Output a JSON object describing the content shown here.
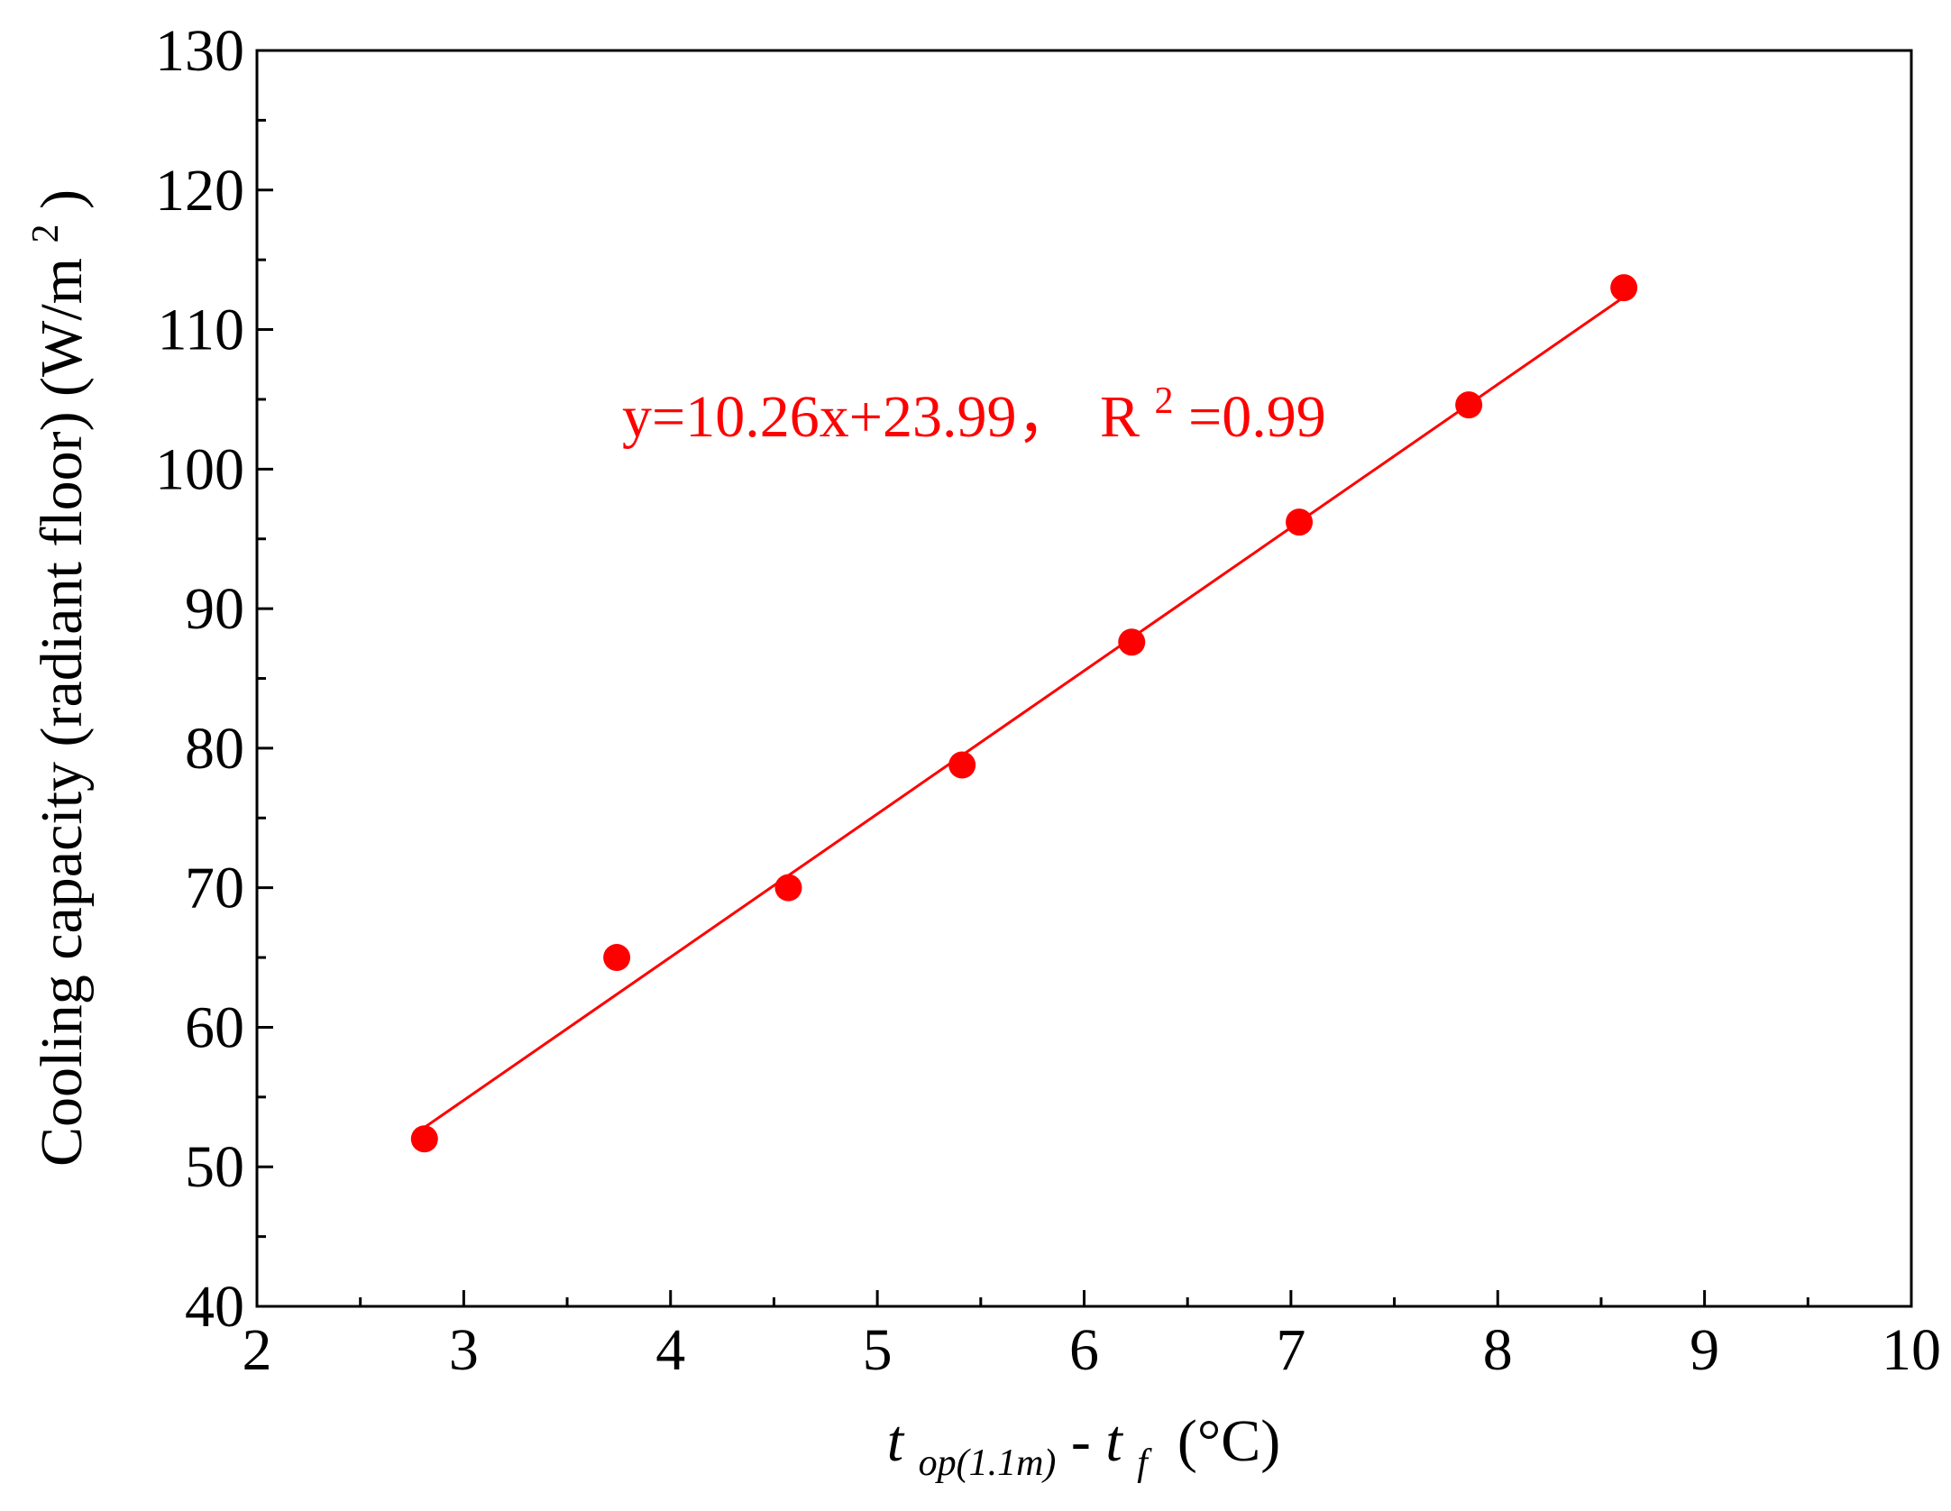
{
  "chart_data": {
    "type": "scatter",
    "xlim": [
      2,
      10
    ],
    "ylim": [
      40,
      130
    ],
    "xticks": [
      2,
      3,
      4,
      5,
      6,
      7,
      8,
      9,
      10
    ],
    "yticks": [
      40,
      50,
      60,
      70,
      80,
      90,
      100,
      110,
      120,
      130
    ],
    "xtick_labels": [
      "2",
      "3",
      "4",
      "5",
      "6",
      "7",
      "8",
      "9",
      "10"
    ],
    "ytick_labels": [
      "40",
      "50",
      "60",
      "70",
      "80",
      "90",
      "100",
      "110",
      "120",
      "130"
    ],
    "xlabel": {
      "t1": "t",
      "sub1": "op(1.1m)",
      "dash": "-",
      "t2": "t",
      "sub2": "f",
      "unit": " (°C)"
    },
    "ylabel": {
      "main": "Cooling capacity (radiant floor) (W/m",
      "sup": "2",
      "close": ")"
    },
    "series": [
      {
        "color": "#ff0000",
        "marker": "circle",
        "points": [
          {
            "x": 2.81,
            "y": 52.0
          },
          {
            "x": 3.74,
            "y": 65.0
          },
          {
            "x": 4.57,
            "y": 70.0
          },
          {
            "x": 5.41,
            "y": 78.8
          },
          {
            "x": 6.23,
            "y": 87.6
          },
          {
            "x": 7.04,
            "y": 96.2
          },
          {
            "x": 7.86,
            "y": 104.6
          },
          {
            "x": 8.61,
            "y": 113.0
          }
        ]
      }
    ],
    "fit": {
      "slope": 10.26,
      "intercept": 23.99,
      "x_range": [
        2.81,
        8.61
      ],
      "color": "#ff0000"
    },
    "annotation": {
      "equation": "y=10.26x+23.99，",
      "r_prefix": "R",
      "r_sup": "2",
      "r_value": "=0.99",
      "color": "#ff0000"
    },
    "grid": false,
    "legend": "none"
  }
}
